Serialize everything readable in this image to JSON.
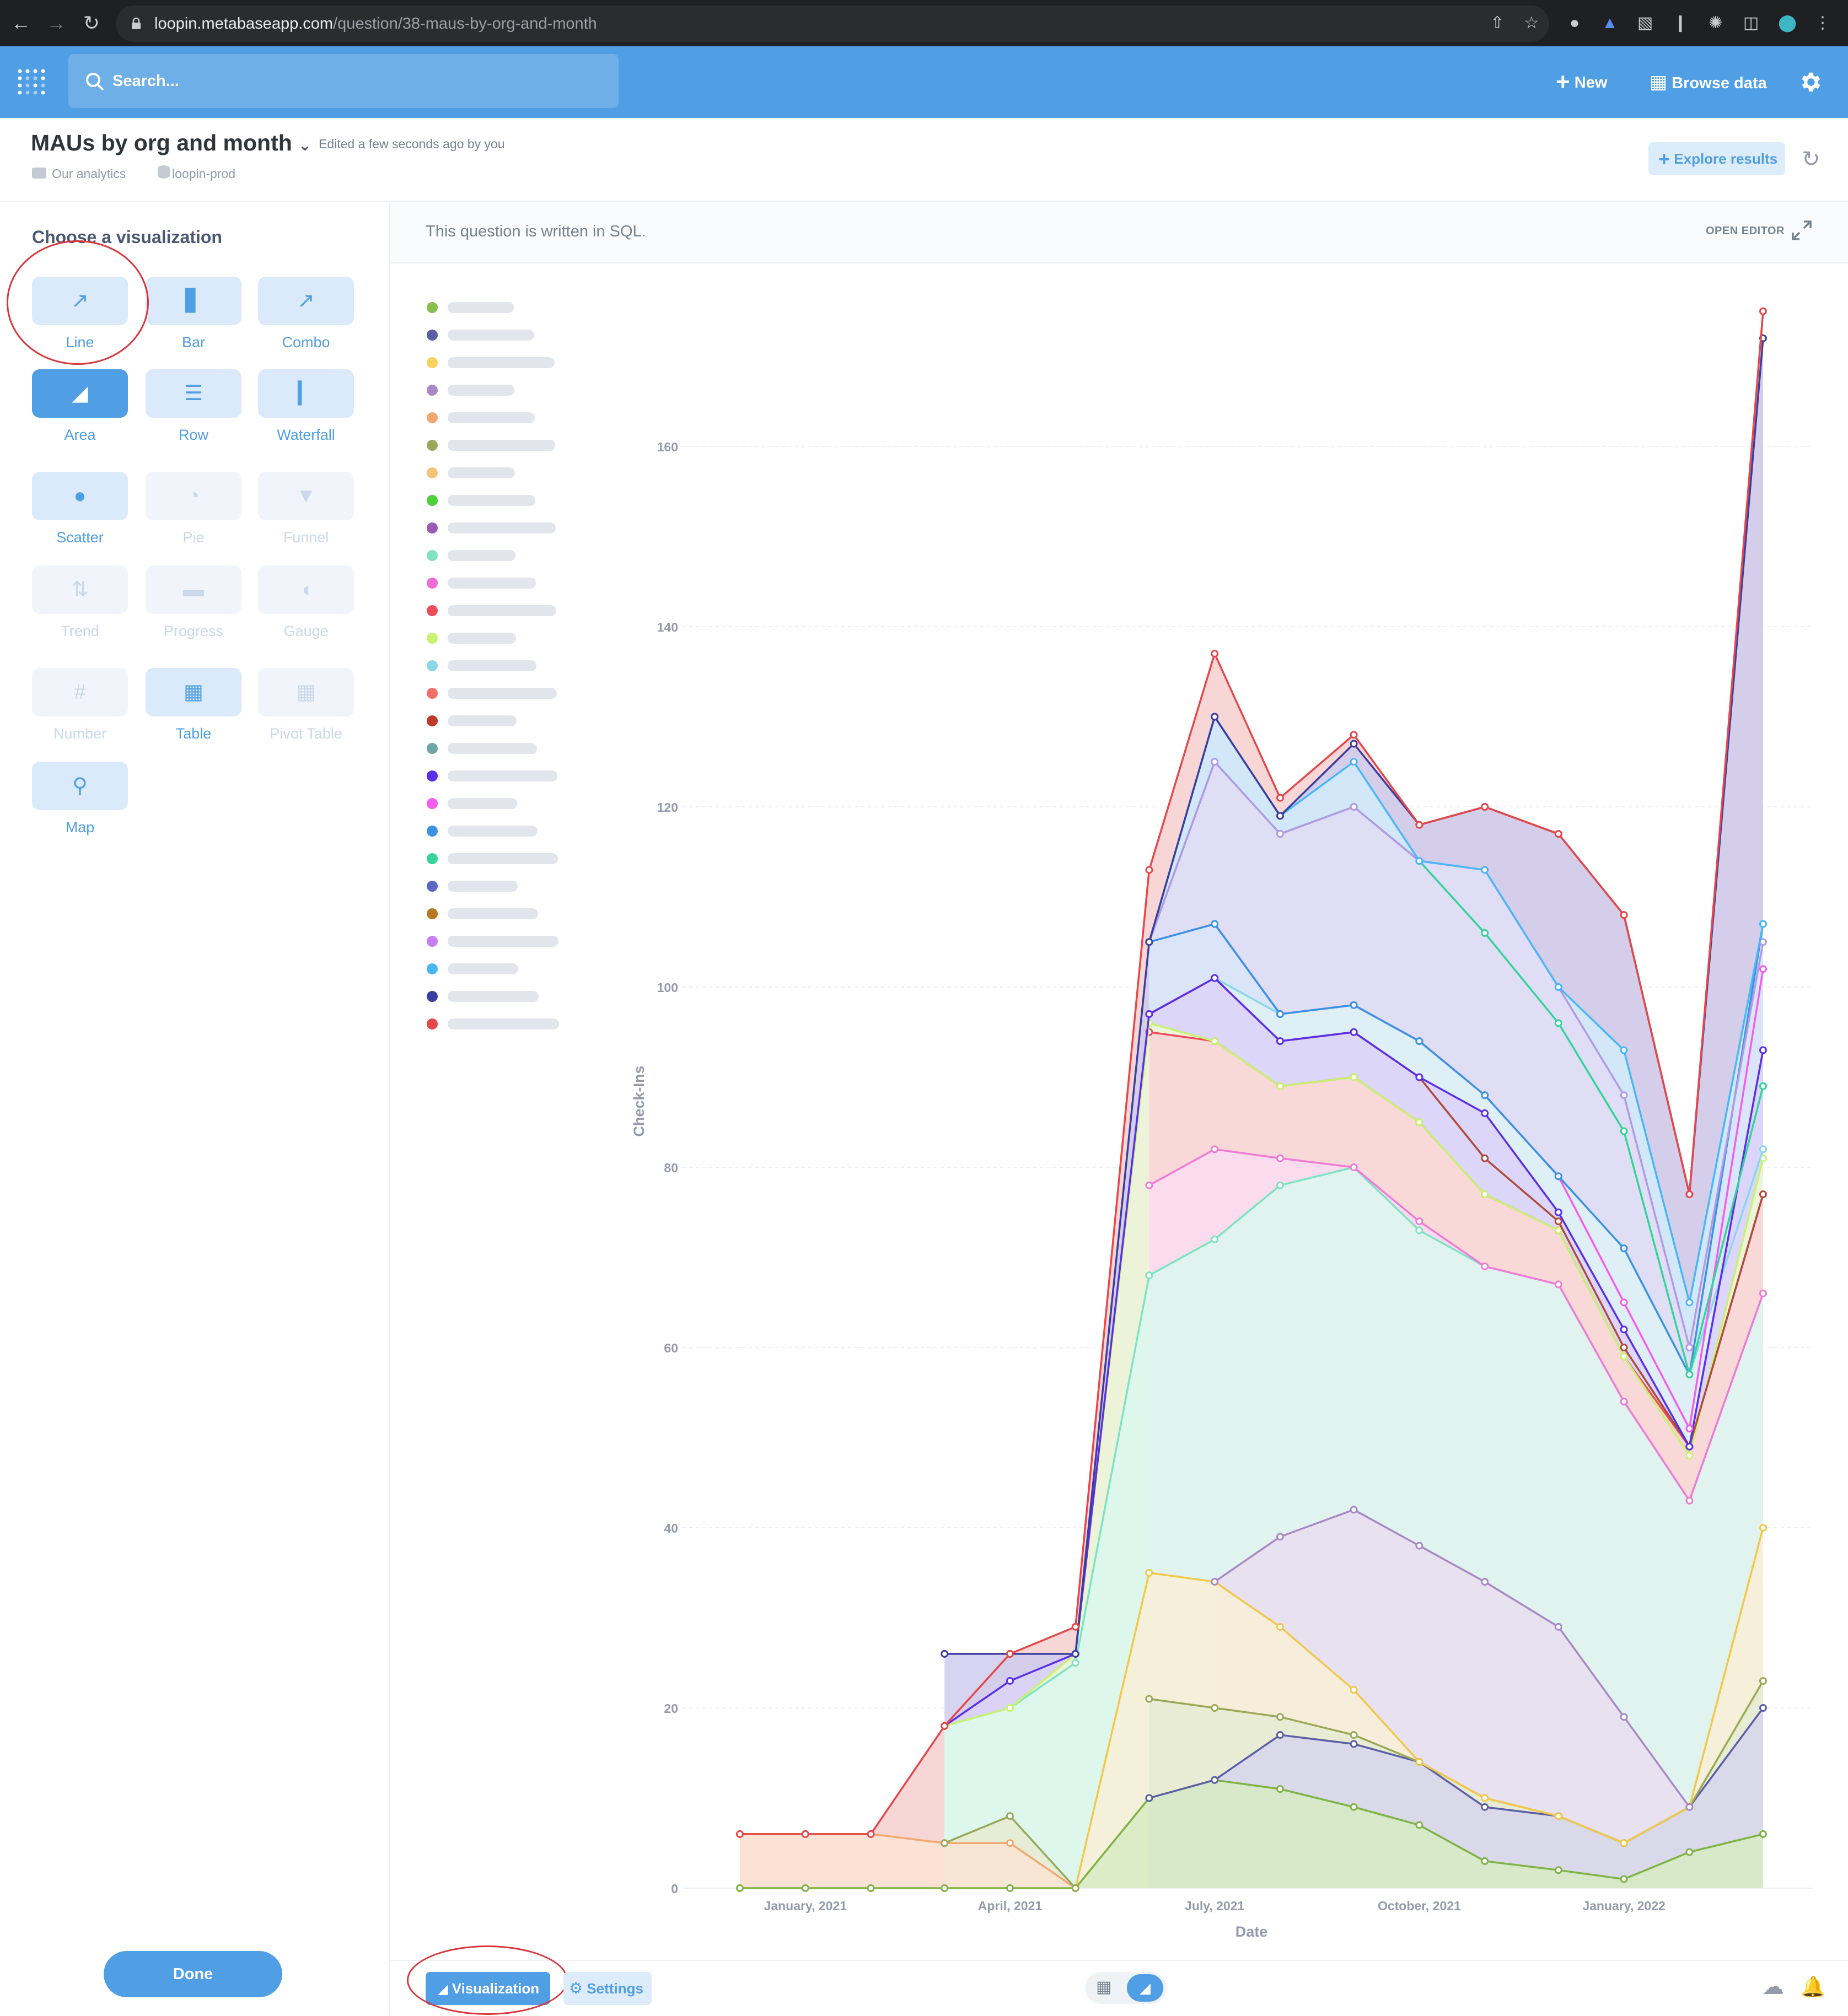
{
  "browser": {
    "url_host": "loopin.metabaseapp.com",
    "url_path": "/question/38-maus-by-org-and-month"
  },
  "navbar": {
    "search_placeholder": "Search...",
    "new_label": "New",
    "browse_label": "Browse data"
  },
  "header": {
    "title": "MAUs by org and month",
    "edited": "Edited a few seconds ago by you",
    "collection": "Our analytics",
    "database": "loopin-prod",
    "explore_label": "Explore results"
  },
  "sidebar": {
    "title": "Choose a visualization",
    "items": [
      {
        "label": "Line",
        "icon": "line-chart-icon",
        "state": "normal"
      },
      {
        "label": "Bar",
        "icon": "bar-chart-icon",
        "state": "normal"
      },
      {
        "label": "Combo",
        "icon": "combo-chart-icon",
        "state": "normal"
      },
      {
        "label": "Area",
        "icon": "area-chart-icon",
        "state": "active"
      },
      {
        "label": "Row",
        "icon": "row-chart-icon",
        "state": "normal"
      },
      {
        "label": "Waterfall",
        "icon": "waterfall-chart-icon",
        "state": "normal"
      },
      {
        "label": "Scatter",
        "icon": "scatter-chart-icon",
        "state": "normal"
      },
      {
        "label": "Pie",
        "icon": "pie-chart-icon",
        "state": "disabled"
      },
      {
        "label": "Funnel",
        "icon": "funnel-chart-icon",
        "state": "disabled"
      },
      {
        "label": "Trend",
        "icon": "trend-icon",
        "state": "disabled"
      },
      {
        "label": "Progress",
        "icon": "progress-icon",
        "state": "disabled"
      },
      {
        "label": "Gauge",
        "icon": "gauge-icon",
        "state": "disabled"
      },
      {
        "label": "Number",
        "icon": "number-icon",
        "state": "disabled"
      },
      {
        "label": "Table",
        "icon": "table-icon",
        "state": "normal"
      },
      {
        "label": "Pivot Table",
        "icon": "pivot-table-icon",
        "state": "disabled"
      },
      {
        "label": "Map",
        "icon": "map-pin-icon",
        "state": "normal"
      }
    ],
    "done_label": "Done"
  },
  "main": {
    "sql_note": "This question is written in SQL.",
    "open_editor": "OPEN EDITOR"
  },
  "footer": {
    "visualization_label": "Visualization",
    "settings_label": "Settings"
  },
  "chart_data": {
    "type": "area",
    "stacked": true,
    "xlabel": "Date",
    "ylabel": "Check-Ins",
    "ylim": [
      0,
      175
    ],
    "yticks": [
      0,
      20,
      40,
      60,
      80,
      100,
      120,
      140,
      160
    ],
    "x_ticks": [
      "January, 2021",
      "April, 2021",
      "July, 2021",
      "October, 2021",
      "January, 2022"
    ],
    "legend_placement": "left",
    "legend_blurred": true,
    "legend_colors": [
      "#88bf4d",
      "#5b5fa6",
      "#f9d45c",
      "#a989c5",
      "#f2a86f",
      "#98a95a",
      "#f7c37b",
      "#4cd137",
      "#9b59b6",
      "#7fe3c3",
      "#f06bd4",
      "#ee4c5a",
      "#c8f26f",
      "#89d7e7",
      "#f07069",
      "#c0392b",
      "#6aa7a5",
      "#5b2fe8",
      "#f55cf0",
      "#3b92e3",
      "#34d399",
      "#5b67c2",
      "#b7791f",
      "#c77df3",
      "#4ab6f5",
      "#3b3e9e",
      "#e4484a"
    ],
    "lines": [
      {
        "color": "#7fb346",
        "fill": "#d6ebc2",
        "points": [
          [
            2020.92,
            0
          ],
          [
            2021,
            0
          ],
          [
            2021.08,
            0
          ],
          [
            2021.17,
            0
          ],
          [
            2021.25,
            0
          ],
          [
            2021.33,
            0
          ],
          [
            2021.42,
            10
          ],
          [
            2021.5,
            12
          ],
          [
            2021.58,
            11
          ],
          [
            2021.67,
            9
          ],
          [
            2021.75,
            7
          ],
          [
            2021.83,
            3
          ],
          [
            2021.92,
            2
          ],
          [
            2022,
            1
          ],
          [
            2022.08,
            4
          ],
          [
            2022.17,
            6
          ]
        ]
      },
      {
        "color": "#5b5fa6",
        "fill": "#d6d6ec",
        "points": [
          [
            2021.42,
            10
          ],
          [
            2021.5,
            12
          ],
          [
            2021.58,
            17
          ],
          [
            2021.67,
            16
          ],
          [
            2021.75,
            14
          ],
          [
            2021.83,
            9
          ],
          [
            2021.92,
            8
          ],
          [
            2022,
            5
          ],
          [
            2022.08,
            9
          ],
          [
            2022.17,
            20
          ]
        ]
      },
      {
        "color": "#9aa955",
        "fill": "#e6ebd3",
        "points": [
          [
            2021.42,
            21
          ],
          [
            2021.5,
            20
          ],
          [
            2021.58,
            19
          ],
          [
            2021.67,
            17
          ],
          [
            2021.75,
            14
          ],
          [
            2021.83,
            10
          ],
          [
            2021.92,
            8
          ],
          [
            2022,
            5
          ],
          [
            2022.08,
            9
          ],
          [
            2022.17,
            23
          ]
        ]
      },
      {
        "color": "#f1c84b",
        "fill": "#f9efd7",
        "points": [
          [
            2021.33,
            0
          ],
          [
            2021.42,
            35
          ],
          [
            2021.5,
            34
          ],
          [
            2021.58,
            29
          ],
          [
            2021.67,
            22
          ],
          [
            2021.75,
            14
          ],
          [
            2021.83,
            10
          ],
          [
            2021.92,
            8
          ],
          [
            2022,
            5
          ],
          [
            2022.08,
            9
          ],
          [
            2022.17,
            40
          ]
        ]
      },
      {
        "color": "#a989c5",
        "fill": "#e9ddf0",
        "points": [
          [
            2021.5,
            34
          ],
          [
            2021.58,
            39
          ],
          [
            2021.67,
            42
          ],
          [
            2021.75,
            38
          ],
          [
            2021.83,
            34
          ],
          [
            2021.92,
            29
          ],
          [
            2022,
            19
          ],
          [
            2022.08,
            9
          ]
        ]
      },
      {
        "color": "#f2a86f",
        "fill": "#fbe4d3",
        "points": [
          [
            2020.92,
            6
          ],
          [
            2021,
            6
          ],
          [
            2021.08,
            6
          ],
          [
            2021.17,
            5
          ],
          [
            2021.25,
            5
          ],
          [
            2021.33,
            0
          ]
        ]
      },
      {
        "color": "#98a95a",
        "fill": "#e6ebd3",
        "points": [
          [
            2021.17,
            5
          ],
          [
            2021.25,
            8
          ],
          [
            2021.33,
            0
          ]
        ]
      },
      {
        "color": "#7fe3c3",
        "fill": "#dcf7ee",
        "points": [
          [
            2021.17,
            18
          ],
          [
            2021.25,
            20
          ],
          [
            2021.33,
            25
          ],
          [
            2021.42,
            68
          ],
          [
            2021.5,
            72
          ],
          [
            2021.58,
            78
          ],
          [
            2021.67,
            80
          ],
          [
            2021.75,
            73
          ],
          [
            2021.83,
            69
          ],
          [
            2021.92,
            67
          ],
          [
            2022,
            54
          ],
          [
            2022.08,
            43
          ],
          [
            2022.17,
            66
          ]
        ]
      },
      {
        "color": "#f07bd6",
        "fill": "#fbdcf2",
        "points": [
          [
            2021.42,
            78
          ],
          [
            2021.5,
            82
          ],
          [
            2021.58,
            81
          ],
          [
            2021.67,
            80
          ],
          [
            2021.75,
            74
          ],
          [
            2021.83,
            69
          ],
          [
            2021.92,
            67
          ],
          [
            2022,
            54
          ],
          [
            2022.08,
            43
          ],
          [
            2022.17,
            66
          ]
        ]
      },
      {
        "color": "#ee4c5a",
        "fill": "#fbd3d6",
        "points": [
          [
            2021.42,
            95
          ],
          [
            2021.5,
            94
          ],
          [
            2021.58,
            89
          ],
          [
            2021.67,
            90
          ],
          [
            2021.75,
            85
          ],
          [
            2021.83,
            77
          ],
          [
            2021.92,
            73
          ],
          [
            2022,
            59
          ],
          [
            2022.08,
            49
          ],
          [
            2022.17,
            77
          ]
        ]
      },
      {
        "color": "#c8f26f",
        "fill": "#eef9d4",
        "points": [
          [
            2021.17,
            18
          ],
          [
            2021.25,
            20
          ],
          [
            2021.33,
            26
          ],
          [
            2021.42,
            96
          ],
          [
            2021.5,
            94
          ],
          [
            2021.58,
            89
          ],
          [
            2021.67,
            90
          ],
          [
            2021.75,
            85
          ],
          [
            2021.83,
            77
          ],
          [
            2021.92,
            73
          ],
          [
            2022,
            59
          ],
          [
            2022.08,
            48
          ],
          [
            2022.17,
            81
          ]
        ]
      },
      {
        "color": "#89d7e7",
        "fill": "#dff1f5",
        "points": [
          [
            2021.42,
            97
          ],
          [
            2021.5,
            101
          ],
          [
            2021.58,
            97
          ],
          [
            2021.67,
            98
          ],
          [
            2021.75,
            94
          ],
          [
            2021.83,
            88
          ],
          [
            2021.92,
            79
          ],
          [
            2022,
            71
          ],
          [
            2022.08,
            57
          ],
          [
            2022.17,
            82
          ]
        ]
      },
      {
        "color": "#b04a3a",
        "fill": "none",
        "points": [
          [
            2021.42,
            97
          ],
          [
            2021.5,
            101
          ],
          [
            2021.58,
            94
          ],
          [
            2021.67,
            95
          ],
          [
            2021.75,
            90
          ],
          [
            2021.83,
            81
          ],
          [
            2021.92,
            74
          ],
          [
            2022,
            60
          ],
          [
            2022.08,
            49
          ],
          [
            2022.17,
            77
          ]
        ]
      },
      {
        "color": "#5b2fe8",
        "fill": "#dcd2fa",
        "points": [
          [
            2021.17,
            18
          ],
          [
            2021.25,
            23
          ],
          [
            2021.33,
            26
          ],
          [
            2021.42,
            97
          ],
          [
            2021.5,
            101
          ],
          [
            2021.58,
            94
          ],
          [
            2021.67,
            95
          ],
          [
            2021.75,
            90
          ],
          [
            2021.83,
            86
          ],
          [
            2021.92,
            75
          ],
          [
            2022,
            62
          ],
          [
            2022.08,
            49
          ],
          [
            2022.17,
            93
          ]
        ]
      },
      {
        "color": "#f55cf0",
        "fill": "#fcd3f7",
        "points": [
          [
            2021.42,
            105
          ],
          [
            2021.5,
            107
          ],
          [
            2021.58,
            97
          ],
          [
            2021.67,
            98
          ],
          [
            2021.75,
            94
          ],
          [
            2021.83,
            88
          ],
          [
            2021.92,
            79
          ],
          [
            2022,
            65
          ],
          [
            2022.08,
            51
          ],
          [
            2022.17,
            102
          ]
        ]
      },
      {
        "color": "#3b92e3",
        "fill": "#d5e8fa",
        "points": [
          [
            2021.42,
            105
          ],
          [
            2021.5,
            107
          ],
          [
            2021.58,
            97
          ],
          [
            2021.67,
            98
          ],
          [
            2021.75,
            94
          ],
          [
            2021.83,
            88
          ],
          [
            2021.92,
            79
          ],
          [
            2022,
            71
          ],
          [
            2022.08,
            57
          ],
          [
            2022.17,
            107
          ]
        ]
      },
      {
        "color": "#34d399",
        "fill": "#c9f3e3",
        "points": [
          [
            2021.42,
            105
          ],
          [
            2021.5,
            125
          ],
          [
            2021.58,
            117
          ],
          [
            2021.67,
            120
          ],
          [
            2021.75,
            114
          ],
          [
            2021.83,
            106
          ],
          [
            2021.92,
            96
          ],
          [
            2022,
            84
          ],
          [
            2022.08,
            57
          ],
          [
            2022.17,
            89
          ]
        ]
      },
      {
        "color": "#b399e6",
        "fill": "#e3daf6",
        "points": [
          [
            2021.42,
            105
          ],
          [
            2021.5,
            125
          ],
          [
            2021.58,
            117
          ],
          [
            2021.67,
            120
          ],
          [
            2021.75,
            114
          ],
          [
            2021.83,
            113
          ],
          [
            2021.92,
            100
          ],
          [
            2022,
            88
          ],
          [
            2022.08,
            60
          ],
          [
            2022.17,
            105
          ]
        ]
      },
      {
        "color": "#4ab6f5",
        "fill": "#d1ecfb",
        "points": [
          [
            2021.42,
            105
          ],
          [
            2021.5,
            130
          ],
          [
            2021.58,
            119
          ],
          [
            2021.67,
            125
          ],
          [
            2021.75,
            114
          ],
          [
            2021.83,
            113
          ],
          [
            2021.92,
            100
          ],
          [
            2022,
            93
          ],
          [
            2022.08,
            65
          ],
          [
            2022.17,
            107
          ]
        ]
      },
      {
        "color": "#3b3e9e",
        "fill": "#cfcdee",
        "points": [
          [
            2021.17,
            26
          ],
          [
            2021.25,
            26
          ],
          [
            2021.33,
            26
          ],
          [
            2021.42,
            105
          ],
          [
            2021.5,
            130
          ],
          [
            2021.58,
            119
          ],
          [
            2021.67,
            127
          ],
          [
            2021.75,
            118
          ],
          [
            2021.83,
            120
          ],
          [
            2021.92,
            117
          ],
          [
            2022,
            108
          ],
          [
            2022.08,
            77
          ],
          [
            2022.17,
            172
          ]
        ]
      },
      {
        "color": "#e4484a",
        "fill": "#f7cfcf",
        "points": [
          [
            2020.92,
            6
          ],
          [
            2021,
            6
          ],
          [
            2021.08,
            6
          ],
          [
            2021.17,
            18
          ],
          [
            2021.25,
            26
          ],
          [
            2021.33,
            29
          ],
          [
            2021.42,
            113
          ],
          [
            2021.5,
            137
          ],
          [
            2021.58,
            121
          ],
          [
            2021.67,
            128
          ],
          [
            2021.75,
            118
          ],
          [
            2021.83,
            120
          ],
          [
            2021.92,
            117
          ],
          [
            2022,
            108
          ],
          [
            2022.08,
            77
          ],
          [
            2022.17,
            175
          ]
        ]
      }
    ]
  }
}
